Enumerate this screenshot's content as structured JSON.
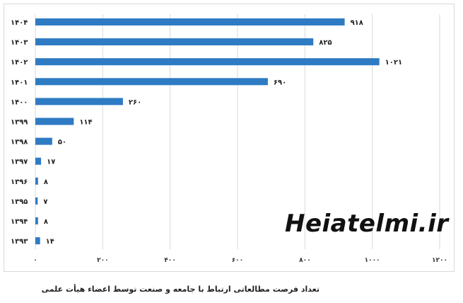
{
  "chart_data": {
    "type": "bar",
    "orientation": "horizontal",
    "categories": [
      "۱۴۰۴",
      "۱۴۰۳",
      "۱۴۰۲",
      "۱۴۰۱",
      "۱۴۰۰",
      "۱۳۹۹",
      "۱۳۹۸",
      "۱۳۹۷",
      "۱۳۹۶",
      "۱۳۹۵",
      "۱۳۹۴",
      "۱۳۹۳"
    ],
    "values": [
      918,
      825,
      1021,
      690,
      260,
      114,
      50,
      17,
      8,
      7,
      8,
      14
    ],
    "value_labels": [
      "۹۱۸",
      "۸۲۵",
      "۱۰۲۱",
      "۶۹۰",
      "۲۶۰",
      "۱۱۴",
      "۵۰",
      "۱۷",
      "۸",
      "۷",
      "۸",
      "۱۴"
    ],
    "xlim": [
      0,
      1200
    ],
    "x_ticks": [
      0,
      200,
      400,
      600,
      800,
      1000,
      1200
    ],
    "x_tick_labels": [
      "۰",
      "۲۰۰",
      "۴۰۰",
      "۶۰۰",
      "۸۰۰",
      "۱۰۰۰",
      "۱۲۰۰"
    ],
    "grid": true,
    "bar_color": "#2e7bc4",
    "grid_color": "#d9d9d9"
  },
  "caption": "تعداد فرصت مطالعاتی ارتباط با جامعه و صنعت توسط اعضاء  هیأت علمی",
  "watermark": "Heiatelmi.ir"
}
